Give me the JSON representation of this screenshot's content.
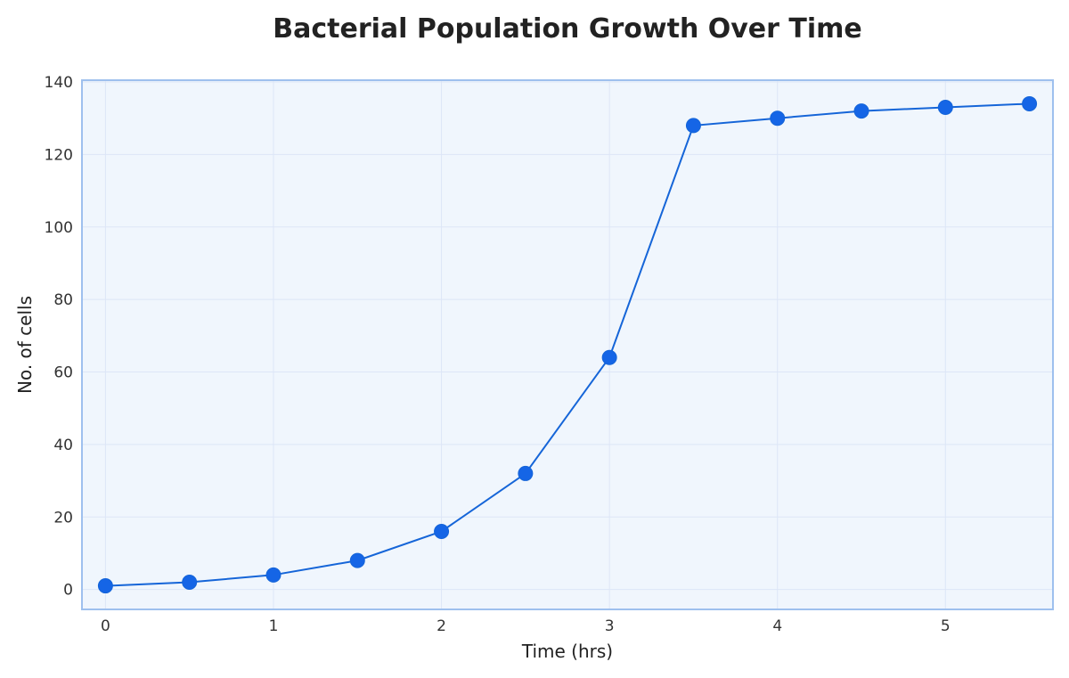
{
  "chart_data": {
    "type": "line",
    "title": "Bacterial Population Growth Over Time",
    "xlabel": "Time (hrs)",
    "ylabel": "No. of cells",
    "xlim": [
      -0.14,
      5.64
    ],
    "ylim": [
      -5.5,
      140.5
    ],
    "xticks": [
      0,
      1,
      2,
      3,
      4,
      5
    ],
    "yticks": [
      0,
      20,
      40,
      60,
      80,
      100,
      120,
      140
    ],
    "grid": true,
    "series": [
      {
        "x": [
          0,
          0.5,
          1,
          1.5,
          2,
          2.5,
          3,
          3.5,
          4,
          4.5,
          5,
          5.5
        ],
        "values": [
          1,
          2,
          4,
          8,
          16,
          32,
          64,
          128,
          130,
          132,
          133,
          134
        ]
      }
    ]
  },
  "colors": {
    "line": "#1565d8",
    "marker": "#1565e6",
    "plot_background": "#f0f6fd",
    "plot_border": "#9ec0ee",
    "grid": "#dde6f7"
  }
}
